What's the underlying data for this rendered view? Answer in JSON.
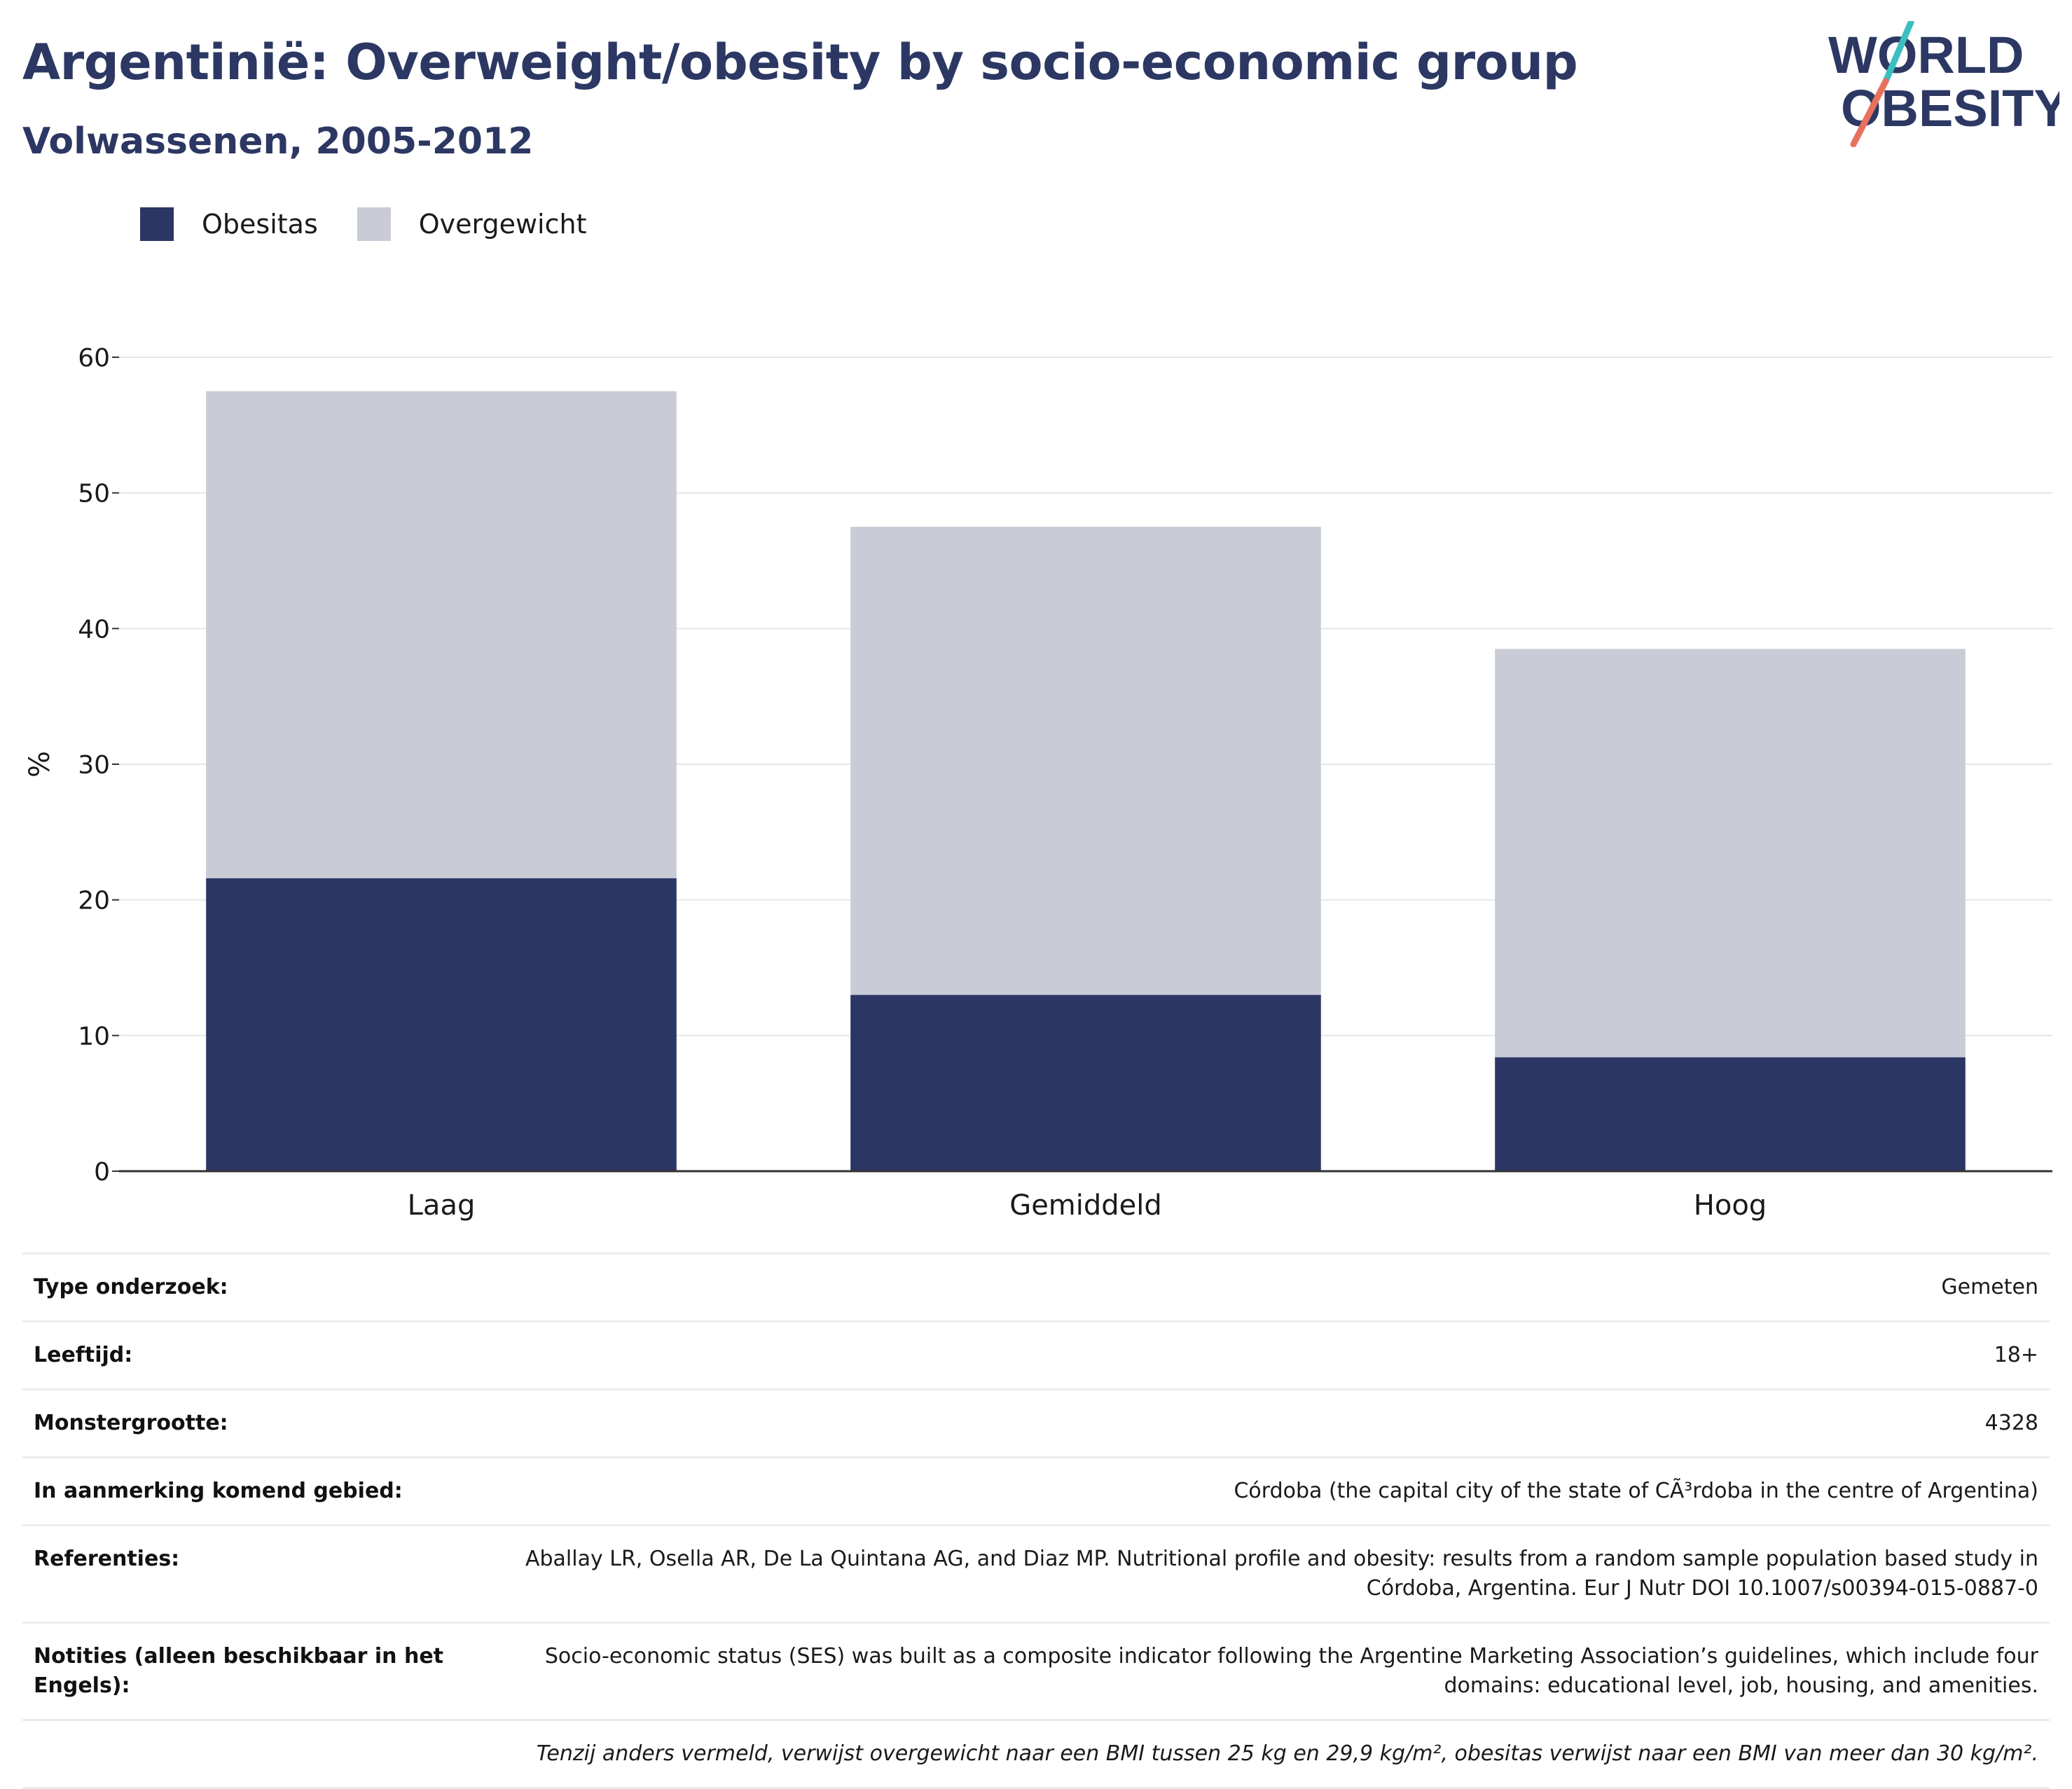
{
  "header": {
    "title": "Argentinië: Overweight/obesity by socio-economic group",
    "subtitle": "Volwassenen, 2005-2012"
  },
  "logo": {
    "line1": "WORLD",
    "line2": "OBESITY",
    "colors": {
      "text": "#2c3863",
      "slash_teal": "#3bbfc1",
      "slash_coral": "#e8705d"
    }
  },
  "legend": [
    {
      "label": "Obesitas",
      "color": "#2b3664"
    },
    {
      "label": "Overgewicht",
      "color": "#c9cbd6"
    }
  ],
  "chart_data": {
    "type": "bar",
    "stacked": true,
    "categories": [
      "Laag",
      "Gemiddeld",
      "Hoog"
    ],
    "series": [
      {
        "name": "Obesitas",
        "values": [
          21.6,
          13.0,
          8.4
        ],
        "color": "#2b3664"
      },
      {
        "name": "Overgewicht",
        "values": [
          35.9,
          34.5,
          30.1
        ],
        "color": "#c9cbd6"
      }
    ],
    "ylabel": "%",
    "ylim": [
      0,
      60
    ],
    "yticks": [
      0,
      10,
      20,
      30,
      40,
      50,
      60
    ],
    "grid": true,
    "legend_position": "top-left"
  },
  "info": [
    {
      "key": "Type onderzoek:",
      "value": "Gemeten"
    },
    {
      "key": "Leeftijd:",
      "value": "18+"
    },
    {
      "key": "Monstergrootte:",
      "value": "4328"
    },
    {
      "key": "In aanmerking komend gebied:",
      "value": "Córdoba (the capital city of the state of CÃ³rdoba in the centre of Argentina)"
    },
    {
      "key": "Referenties:",
      "value": "Aballay LR, Osella AR, De La Quintana AG, and Diaz MP. Nutritional profile and obesity: results from a random sample population based study in Córdoba, Argentina. Eur J Nutr DOI 10.1007/s00394-015-0887-0"
    },
    {
      "key": "Notities (alleen beschikbaar in het Engels):",
      "value": "Socio-economic status (SES) was built as a composite indicator following the Argentine Marketing Association’s guidelines, which include four domains: educational level, job, housing, and amenities."
    }
  ],
  "footnote": "Tenzij anders vermeld, verwijst overgewicht naar een BMI tussen 25 kg en 29,9 kg/m², obesitas verwijst naar een BMI van meer dan 30 kg/m²."
}
